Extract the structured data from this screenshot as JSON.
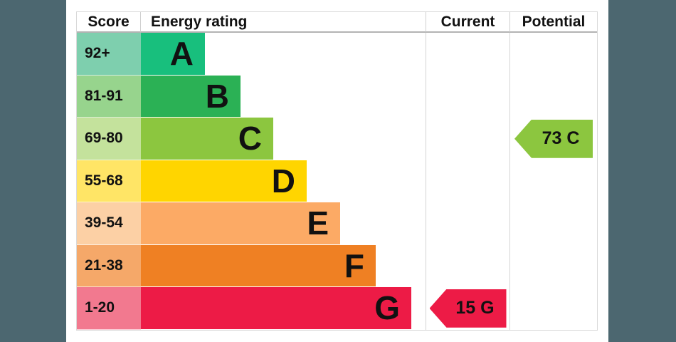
{
  "header": {
    "score": "Score",
    "energy_rating": "Energy rating",
    "current": "Current",
    "potential": "Potential"
  },
  "chart_data": {
    "type": "bar",
    "title": "Energy rating",
    "categories": [
      "A",
      "B",
      "C",
      "D",
      "E",
      "F",
      "G"
    ],
    "bands": [
      {
        "letter": "A",
        "score_range": "92+",
        "bar_color": "#18bf7d",
        "score_cell_color": "#7ecfae",
        "bar_width_pct": 22.5
      },
      {
        "letter": "B",
        "score_range": "81-91",
        "bar_color": "#2bb155",
        "score_cell_color": "#97d48d",
        "bar_width_pct": 35
      },
      {
        "letter": "C",
        "score_range": "69-80",
        "bar_color": "#8cc63f",
        "score_cell_color": "#c4e29c",
        "bar_width_pct": 46.5
      },
      {
        "letter": "D",
        "score_range": "55-68",
        "bar_color": "#ffd500",
        "score_cell_color": "#ffe566",
        "bar_width_pct": 58.25
      },
      {
        "letter": "E",
        "score_range": "39-54",
        "bar_color": "#fcaa65",
        "score_cell_color": "#fcd0a5",
        "bar_width_pct": 70
      },
      {
        "letter": "F",
        "score_range": "21-38",
        "bar_color": "#ef8023",
        "score_cell_color": "#f5a869",
        "bar_width_pct": 82.5
      },
      {
        "letter": "G",
        "score_range": "1-20",
        "bar_color": "#ed1b46",
        "score_cell_color": "#f2798f",
        "bar_width_pct": 95
      }
    ],
    "current": {
      "value": 15,
      "band": "G",
      "label": "15 G",
      "arrow_color": "#ed1b46"
    },
    "potential": {
      "value": 73,
      "band": "C",
      "label": "73 C",
      "arrow_color": "#8cc63f"
    }
  },
  "colors": {
    "side_band": "#4c6770",
    "table_border": "#d9d9d9",
    "header_underline": "#b3b3b3"
  }
}
